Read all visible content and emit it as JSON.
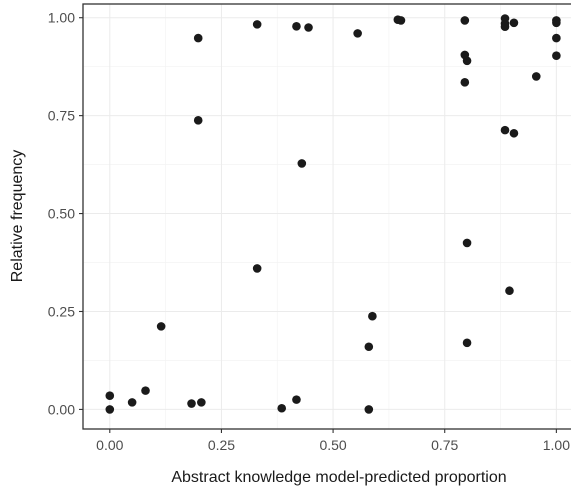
{
  "chart_data": {
    "type": "scatter",
    "title": "",
    "xlabel": "Abstract knowledge model-predicted proportion",
    "ylabel": "Relative frequency",
    "xlim": [
      -0.06,
      1.035
    ],
    "ylim": [
      -0.05,
      1.035
    ],
    "x_ticks": [
      0,
      0.25,
      0.5,
      0.75,
      1
    ],
    "x_tick_labels": [
      "0.00",
      "0.25",
      "0.50",
      "0.75",
      "1.00"
    ],
    "y_ticks": [
      0,
      0.25,
      0.5,
      0.75,
      1
    ],
    "y_tick_labels": [
      "0.00",
      "0.25",
      "0.50",
      "0.75",
      "1.00"
    ],
    "grid": true,
    "point_color": "#1a1a1a",
    "points": [
      {
        "x": 0.0,
        "y": 0.035
      },
      {
        "x": 0.0,
        "y": 0.0
      },
      {
        "x": 0.05,
        "y": 0.018
      },
      {
        "x": 0.08,
        "y": 0.048
      },
      {
        "x": 0.115,
        "y": 0.212
      },
      {
        "x": 0.183,
        "y": 0.015
      },
      {
        "x": 0.205,
        "y": 0.018
      },
      {
        "x": 0.198,
        "y": 0.948
      },
      {
        "x": 0.198,
        "y": 0.738
      },
      {
        "x": 0.33,
        "y": 0.983
      },
      {
        "x": 0.33,
        "y": 0.36
      },
      {
        "x": 0.385,
        "y": 0.003
      },
      {
        "x": 0.418,
        "y": 0.025
      },
      {
        "x": 0.418,
        "y": 0.978
      },
      {
        "x": 0.43,
        "y": 0.628
      },
      {
        "x": 0.445,
        "y": 0.975
      },
      {
        "x": 0.555,
        "y": 0.96
      },
      {
        "x": 0.58,
        "y": 0.0
      },
      {
        "x": 0.58,
        "y": 0.16
      },
      {
        "x": 0.588,
        "y": 0.238
      },
      {
        "x": 0.645,
        "y": 0.995
      },
      {
        "x": 0.652,
        "y": 0.993
      },
      {
        "x": 0.795,
        "y": 0.993
      },
      {
        "x": 0.795,
        "y": 0.905
      },
      {
        "x": 0.8,
        "y": 0.89
      },
      {
        "x": 0.795,
        "y": 0.835
      },
      {
        "x": 0.8,
        "y": 0.425
      },
      {
        "x": 0.8,
        "y": 0.17
      },
      {
        "x": 0.885,
        "y": 0.998
      },
      {
        "x": 0.885,
        "y": 0.985
      },
      {
        "x": 0.885,
        "y": 0.977
      },
      {
        "x": 0.885,
        "y": 0.713
      },
      {
        "x": 0.895,
        "y": 0.303
      },
      {
        "x": 0.905,
        "y": 0.987
      },
      {
        "x": 0.905,
        "y": 0.705
      },
      {
        "x": 0.955,
        "y": 0.85
      },
      {
        "x": 1.0,
        "y": 0.993
      },
      {
        "x": 1.0,
        "y": 0.987
      },
      {
        "x": 1.0,
        "y": 0.948
      },
      {
        "x": 1.0,
        "y": 0.903
      }
    ]
  }
}
